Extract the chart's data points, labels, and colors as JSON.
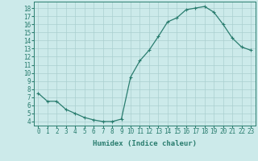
{
  "x": [
    0,
    1,
    2,
    3,
    4,
    5,
    6,
    7,
    8,
    9,
    10,
    11,
    12,
    13,
    14,
    15,
    16,
    17,
    18,
    19,
    20,
    21,
    22,
    23
  ],
  "y": [
    7.5,
    6.5,
    6.5,
    5.5,
    5.0,
    4.5,
    4.2,
    4.0,
    4.0,
    4.3,
    9.5,
    11.5,
    12.8,
    14.5,
    16.3,
    16.8,
    17.8,
    18.0,
    18.2,
    17.5,
    16.0,
    14.3,
    13.2,
    12.8
  ],
  "line_color": "#2a7d6f",
  "marker": "P",
  "marker_size": 2.0,
  "bg_color": "#cceaea",
  "grid_color_major": "#aacfcf",
  "grid_color_minor": "#aacfcf",
  "axis_color": "#2a7d6f",
  "xlabel": "Humidex (Indice chaleur)",
  "ylim": [
    3.5,
    18.8
  ],
  "xlim": [
    -0.5,
    23.5
  ],
  "yticks": [
    4,
    5,
    6,
    7,
    8,
    9,
    10,
    11,
    12,
    13,
    14,
    15,
    16,
    17,
    18
  ],
  "xticks": [
    0,
    1,
    2,
    3,
    4,
    5,
    6,
    7,
    8,
    9,
    10,
    11,
    12,
    13,
    14,
    15,
    16,
    17,
    18,
    19,
    20,
    21,
    22,
    23
  ],
  "tick_fontsize": 5.5,
  "xlabel_fontsize": 6.5
}
